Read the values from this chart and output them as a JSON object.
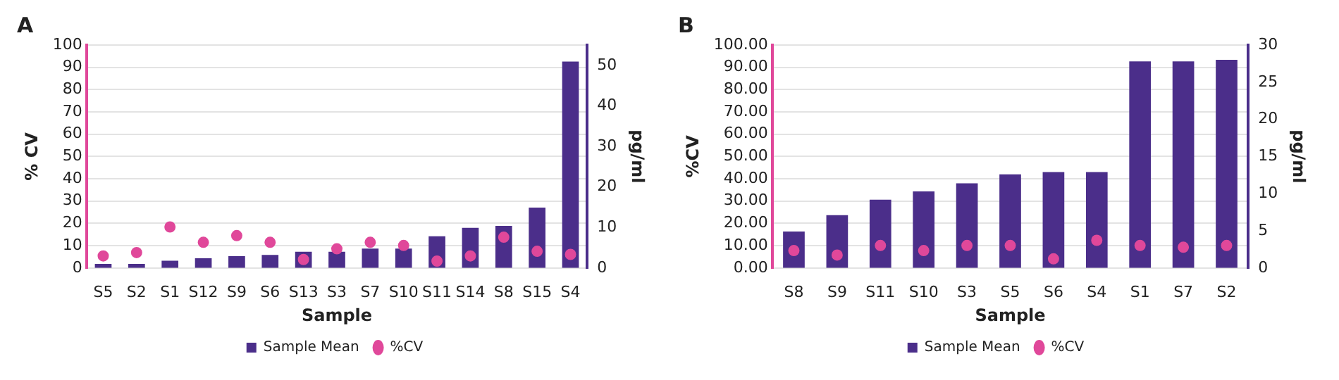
{
  "chart_data": [
    {
      "type": "bar",
      "title": "A",
      "xlabel": "Sample",
      "ylabel": "% CV",
      "y2label": "pg/ml",
      "categories": [
        "S5",
        "S2",
        "S1",
        "S12",
        "S9",
        "S6",
        "S13",
        "S3",
        "S7",
        "S10",
        "S11",
        "S14",
        "S8",
        "S15",
        "S4"
      ],
      "series": [
        {
          "name": "Sample Mean",
          "axis": "y2",
          "color": "#4b2e8a",
          "values": [
            1.0,
            1.0,
            1.8,
            2.4,
            2.9,
            3.2,
            4.0,
            4.0,
            4.8,
            4.8,
            7.8,
            9.9,
            10.4,
            14.9,
            50.9
          ]
        },
        {
          "name": "%CV",
          "type": "scatter",
          "color": "#e0489a",
          "values": [
            5.4,
            6.9,
            18.4,
            11.5,
            14.5,
            11.5,
            3.8,
            8.6,
            11.5,
            10.1,
            3.1,
            5.4,
            13.8,
            7.5,
            6.1
          ]
        }
      ],
      "ylim": [
        0,
        100
      ],
      "yticks": [
        0,
        10,
        20,
        30,
        40,
        50,
        60,
        70,
        80,
        90,
        100
      ],
      "y2lim": [
        0,
        55
      ],
      "y2ticks": [
        0,
        10,
        20,
        30,
        40,
        50
      ],
      "grid": "y",
      "legend": "bottom",
      "marker": "circle"
    },
    {
      "type": "bar",
      "title": "B",
      "xlabel": "Sample",
      "ylabel": "%CV",
      "y2label": "pg/ml",
      "categories": [
        "S8",
        "S9",
        "S11",
        "S10",
        "S3",
        "S5",
        "S6",
        "S4",
        "S1",
        "S7",
        "S2"
      ],
      "series": [
        {
          "name": "Sample Mean",
          "axis": "y2",
          "color": "#4b2e8a",
          "values": [
            4.9,
            7.1,
            9.2,
            10.3,
            11.4,
            12.6,
            12.9,
            12.9,
            27.8,
            27.8,
            28.0
          ]
        },
        {
          "name": "%CV",
          "type": "scatter",
          "color": "#e0489a",
          "values": [
            7.8,
            5.8,
            10.1,
            7.8,
            10.1,
            10.1,
            4.1,
            12.4,
            10.1,
            9.3,
            10.1
          ]
        }
      ],
      "ylim": [
        0,
        100
      ],
      "yticks": [
        {
          "value": 0,
          "label": "0.00"
        },
        {
          "value": 10,
          "label": "10.00"
        },
        {
          "value": 20,
          "label": "20.00"
        },
        {
          "value": 30,
          "label": "30.00"
        },
        {
          "value": 40,
          "label": "40.00"
        },
        {
          "value": 50,
          "label": "50.00"
        },
        {
          "value": 60,
          "label": "60.00"
        },
        {
          "value": 70,
          "label": "70.00"
        },
        {
          "value": 80,
          "label": "80.00"
        },
        {
          "value": 90,
          "label": "90.00"
        },
        {
          "value": 100,
          "label": "100.00"
        }
      ],
      "y2lim": [
        0,
        30
      ],
      "y2ticks": [
        0,
        5,
        10,
        15,
        20,
        25,
        30
      ],
      "grid": "y",
      "legend": "bottom",
      "marker": "circle"
    }
  ]
}
